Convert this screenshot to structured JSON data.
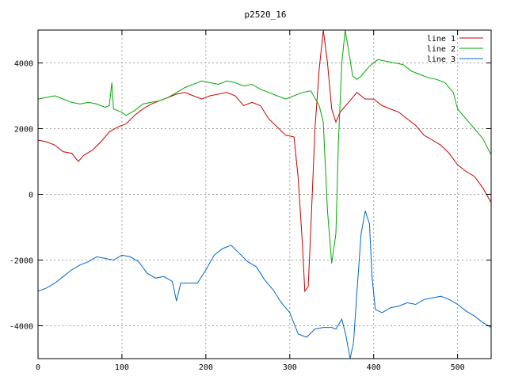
{
  "chart_data": {
    "type": "line",
    "title": "p2520_16",
    "xlabel": "",
    "ylabel": "",
    "xlim": [
      0,
      540
    ],
    "ylim": [
      -5000,
      5000
    ],
    "x_ticks": [
      0,
      100,
      200,
      300,
      400,
      500
    ],
    "y_ticks": [
      -4000,
      -2000,
      0,
      2000,
      4000
    ],
    "grid": true,
    "legend_position": "top-right",
    "series": [
      {
        "name": "line 1",
        "color": "#cc0000",
        "points": [
          [
            0,
            1650
          ],
          [
            10,
            1600
          ],
          [
            20,
            1500
          ],
          [
            30,
            1300
          ],
          [
            40,
            1250
          ],
          [
            48,
            1000
          ],
          [
            55,
            1200
          ],
          [
            65,
            1350
          ],
          [
            75,
            1600
          ],
          [
            85,
            1900
          ],
          [
            95,
            2050
          ],
          [
            105,
            2150
          ],
          [
            115,
            2400
          ],
          [
            125,
            2600
          ],
          [
            135,
            2750
          ],
          [
            145,
            2850
          ],
          [
            155,
            2950
          ],
          [
            165,
            3050
          ],
          [
            175,
            3100
          ],
          [
            185,
            3000
          ],
          [
            195,
            2900
          ],
          [
            205,
            3000
          ],
          [
            215,
            3050
          ],
          [
            225,
            3100
          ],
          [
            235,
            3000
          ],
          [
            245,
            2700
          ],
          [
            255,
            2800
          ],
          [
            265,
            2700
          ],
          [
            275,
            2300
          ],
          [
            285,
            2050
          ],
          [
            295,
            1800
          ],
          [
            305,
            1750
          ],
          [
            310,
            500
          ],
          [
            315,
            -1500
          ],
          [
            318,
            -2950
          ],
          [
            322,
            -2800
          ],
          [
            326,
            -500
          ],
          [
            330,
            2000
          ],
          [
            335,
            3800
          ],
          [
            340,
            5000
          ],
          [
            345,
            4000
          ],
          [
            350,
            2600
          ],
          [
            355,
            2200
          ],
          [
            360,
            2500
          ],
          [
            370,
            2800
          ],
          [
            380,
            3100
          ],
          [
            390,
            2900
          ],
          [
            400,
            2900
          ],
          [
            410,
            2700
          ],
          [
            420,
            2600
          ],
          [
            430,
            2500
          ],
          [
            440,
            2300
          ],
          [
            450,
            2100
          ],
          [
            460,
            1800
          ],
          [
            470,
            1650
          ],
          [
            480,
            1500
          ],
          [
            490,
            1250
          ],
          [
            500,
            900
          ],
          [
            510,
            700
          ],
          [
            520,
            550
          ],
          [
            530,
            200
          ],
          [
            540,
            -250
          ]
        ]
      },
      {
        "name": "line 2",
        "color": "#00aa00",
        "points": [
          [
            0,
            2900
          ],
          [
            10,
            2950
          ],
          [
            20,
            3000
          ],
          [
            30,
            2900
          ],
          [
            40,
            2800
          ],
          [
            50,
            2750
          ],
          [
            60,
            2800
          ],
          [
            70,
            2750
          ],
          [
            80,
            2650
          ],
          [
            85,
            2700
          ],
          [
            88,
            3400
          ],
          [
            90,
            2600
          ],
          [
            95,
            2550
          ],
          [
            100,
            2500
          ],
          [
            105,
            2400
          ],
          [
            115,
            2550
          ],
          [
            125,
            2750
          ],
          [
            135,
            2800
          ],
          [
            145,
            2850
          ],
          [
            155,
            2950
          ],
          [
            165,
            3100
          ],
          [
            175,
            3250
          ],
          [
            185,
            3350
          ],
          [
            195,
            3450
          ],
          [
            205,
            3400
          ],
          [
            215,
            3350
          ],
          [
            225,
            3450
          ],
          [
            235,
            3400
          ],
          [
            245,
            3300
          ],
          [
            255,
            3350
          ],
          [
            265,
            3200
          ],
          [
            275,
            3100
          ],
          [
            285,
            3000
          ],
          [
            295,
            2900
          ],
          [
            305,
            3000
          ],
          [
            315,
            3100
          ],
          [
            325,
            3150
          ],
          [
            335,
            2700
          ],
          [
            340,
            2200
          ],
          [
            345,
            -500
          ],
          [
            350,
            -2100
          ],
          [
            355,
            -1200
          ],
          [
            358,
            1600
          ],
          [
            362,
            4000
          ],
          [
            366,
            5000
          ],
          [
            370,
            4400
          ],
          [
            375,
            3600
          ],
          [
            380,
            3500
          ],
          [
            385,
            3600
          ],
          [
            395,
            3900
          ],
          [
            405,
            4100
          ],
          [
            415,
            4050
          ],
          [
            425,
            4000
          ],
          [
            435,
            3950
          ],
          [
            445,
            3750
          ],
          [
            455,
            3650
          ],
          [
            465,
            3550
          ],
          [
            475,
            3500
          ],
          [
            485,
            3400
          ],
          [
            495,
            3100
          ],
          [
            500,
            2600
          ],
          [
            510,
            2300
          ],
          [
            520,
            2000
          ],
          [
            530,
            1700
          ],
          [
            540,
            1200
          ]
        ]
      },
      {
        "name": "line 3",
        "color": "#0066cc",
        "points": [
          [
            0,
            -2950
          ],
          [
            10,
            -2850
          ],
          [
            20,
            -2700
          ],
          [
            30,
            -2500
          ],
          [
            40,
            -2300
          ],
          [
            50,
            -2150
          ],
          [
            60,
            -2050
          ],
          [
            70,
            -1900
          ],
          [
            80,
            -1950
          ],
          [
            90,
            -2000
          ],
          [
            100,
            -1850
          ],
          [
            110,
            -1900
          ],
          [
            120,
            -2050
          ],
          [
            130,
            -2400
          ],
          [
            140,
            -2550
          ],
          [
            150,
            -2500
          ],
          [
            160,
            -2650
          ],
          [
            165,
            -3250
          ],
          [
            170,
            -2700
          ],
          [
            180,
            -2700
          ],
          [
            190,
            -2700
          ],
          [
            200,
            -2300
          ],
          [
            210,
            -1850
          ],
          [
            220,
            -1650
          ],
          [
            230,
            -1550
          ],
          [
            240,
            -1800
          ],
          [
            250,
            -2050
          ],
          [
            260,
            -2200
          ],
          [
            270,
            -2600
          ],
          [
            280,
            -2900
          ],
          [
            290,
            -3300
          ],
          [
            300,
            -3600
          ],
          [
            310,
            -4250
          ],
          [
            320,
            -4350
          ],
          [
            330,
            -4100
          ],
          [
            340,
            -4050
          ],
          [
            350,
            -4050
          ],
          [
            355,
            -4100
          ],
          [
            362,
            -3800
          ],
          [
            367,
            -4300
          ],
          [
            372,
            -5000
          ],
          [
            376,
            -4500
          ],
          [
            380,
            -3000
          ],
          [
            385,
            -1200
          ],
          [
            390,
            -500
          ],
          [
            395,
            -900
          ],
          [
            398,
            -2500
          ],
          [
            402,
            -3500
          ],
          [
            410,
            -3600
          ],
          [
            420,
            -3450
          ],
          [
            430,
            -3400
          ],
          [
            440,
            -3300
          ],
          [
            450,
            -3350
          ],
          [
            460,
            -3200
          ],
          [
            470,
            -3150
          ],
          [
            480,
            -3100
          ],
          [
            490,
            -3200
          ],
          [
            500,
            -3350
          ],
          [
            510,
            -3550
          ],
          [
            520,
            -3700
          ],
          [
            530,
            -3900
          ],
          [
            540,
            -4050
          ]
        ]
      }
    ]
  }
}
